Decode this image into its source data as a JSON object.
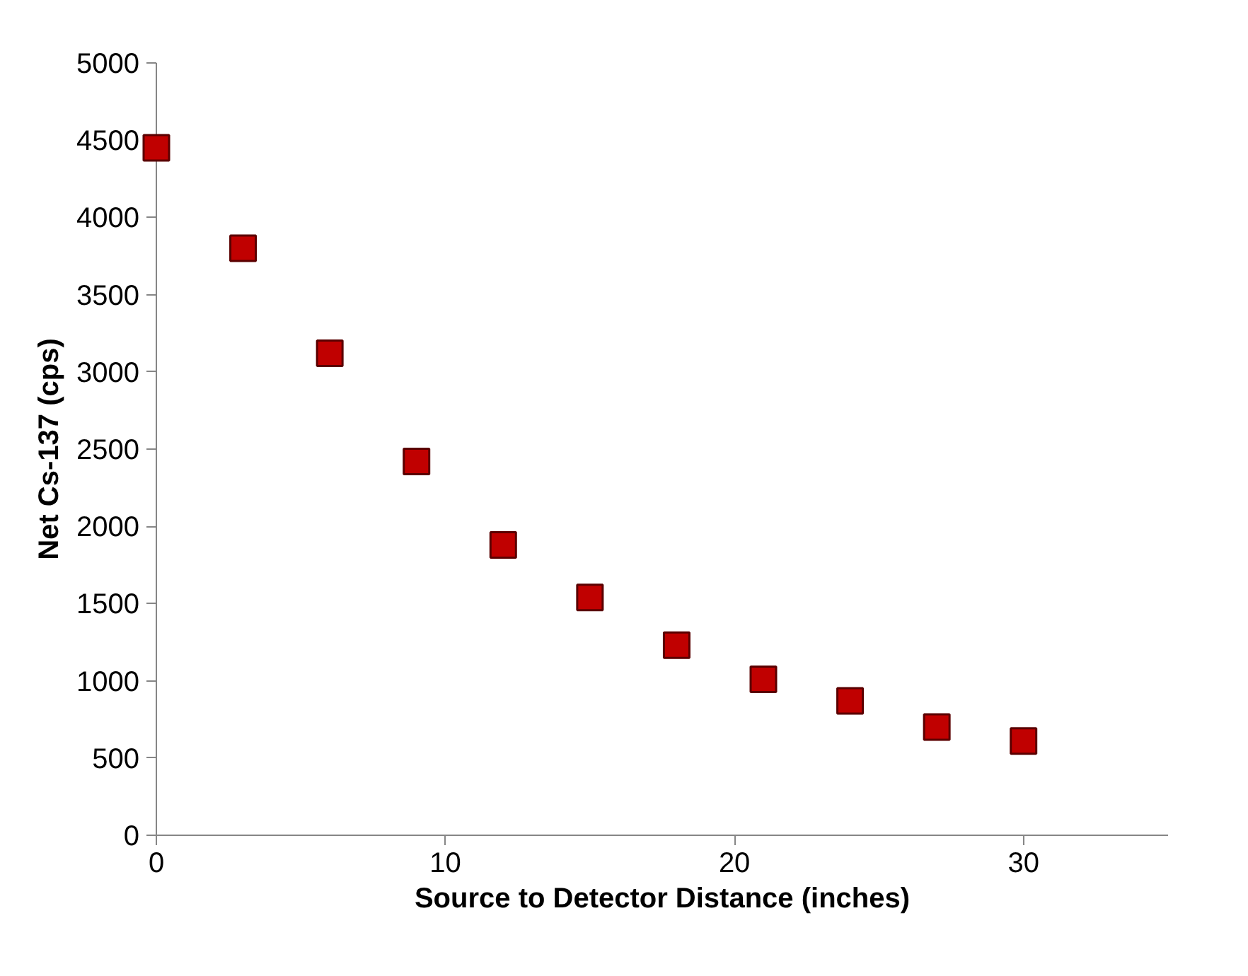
{
  "chart_data": {
    "type": "scatter",
    "xlabel": "Source to Detector Distance (inches)",
    "ylabel": "Net Cs-137 (cps)",
    "x": [
      0,
      3,
      6,
      9,
      12,
      15,
      18,
      21,
      24,
      27,
      30
    ],
    "series": [
      {
        "color": "#c00000",
        "values": [
          4450,
          3800,
          3120,
          2420,
          1880,
          1540,
          1230,
          1010,
          870,
          700,
          610
        ]
      }
    ],
    "xlim": [
      0,
      35
    ],
    "xticks": [
      0,
      10,
      20,
      30
    ],
    "ylim": [
      0,
      5000
    ],
    "yticks": [
      0,
      500,
      1000,
      1500,
      2000,
      2500,
      3000,
      3500,
      4000,
      4500,
      5000
    ],
    "grid": false,
    "marker": "square"
  }
}
